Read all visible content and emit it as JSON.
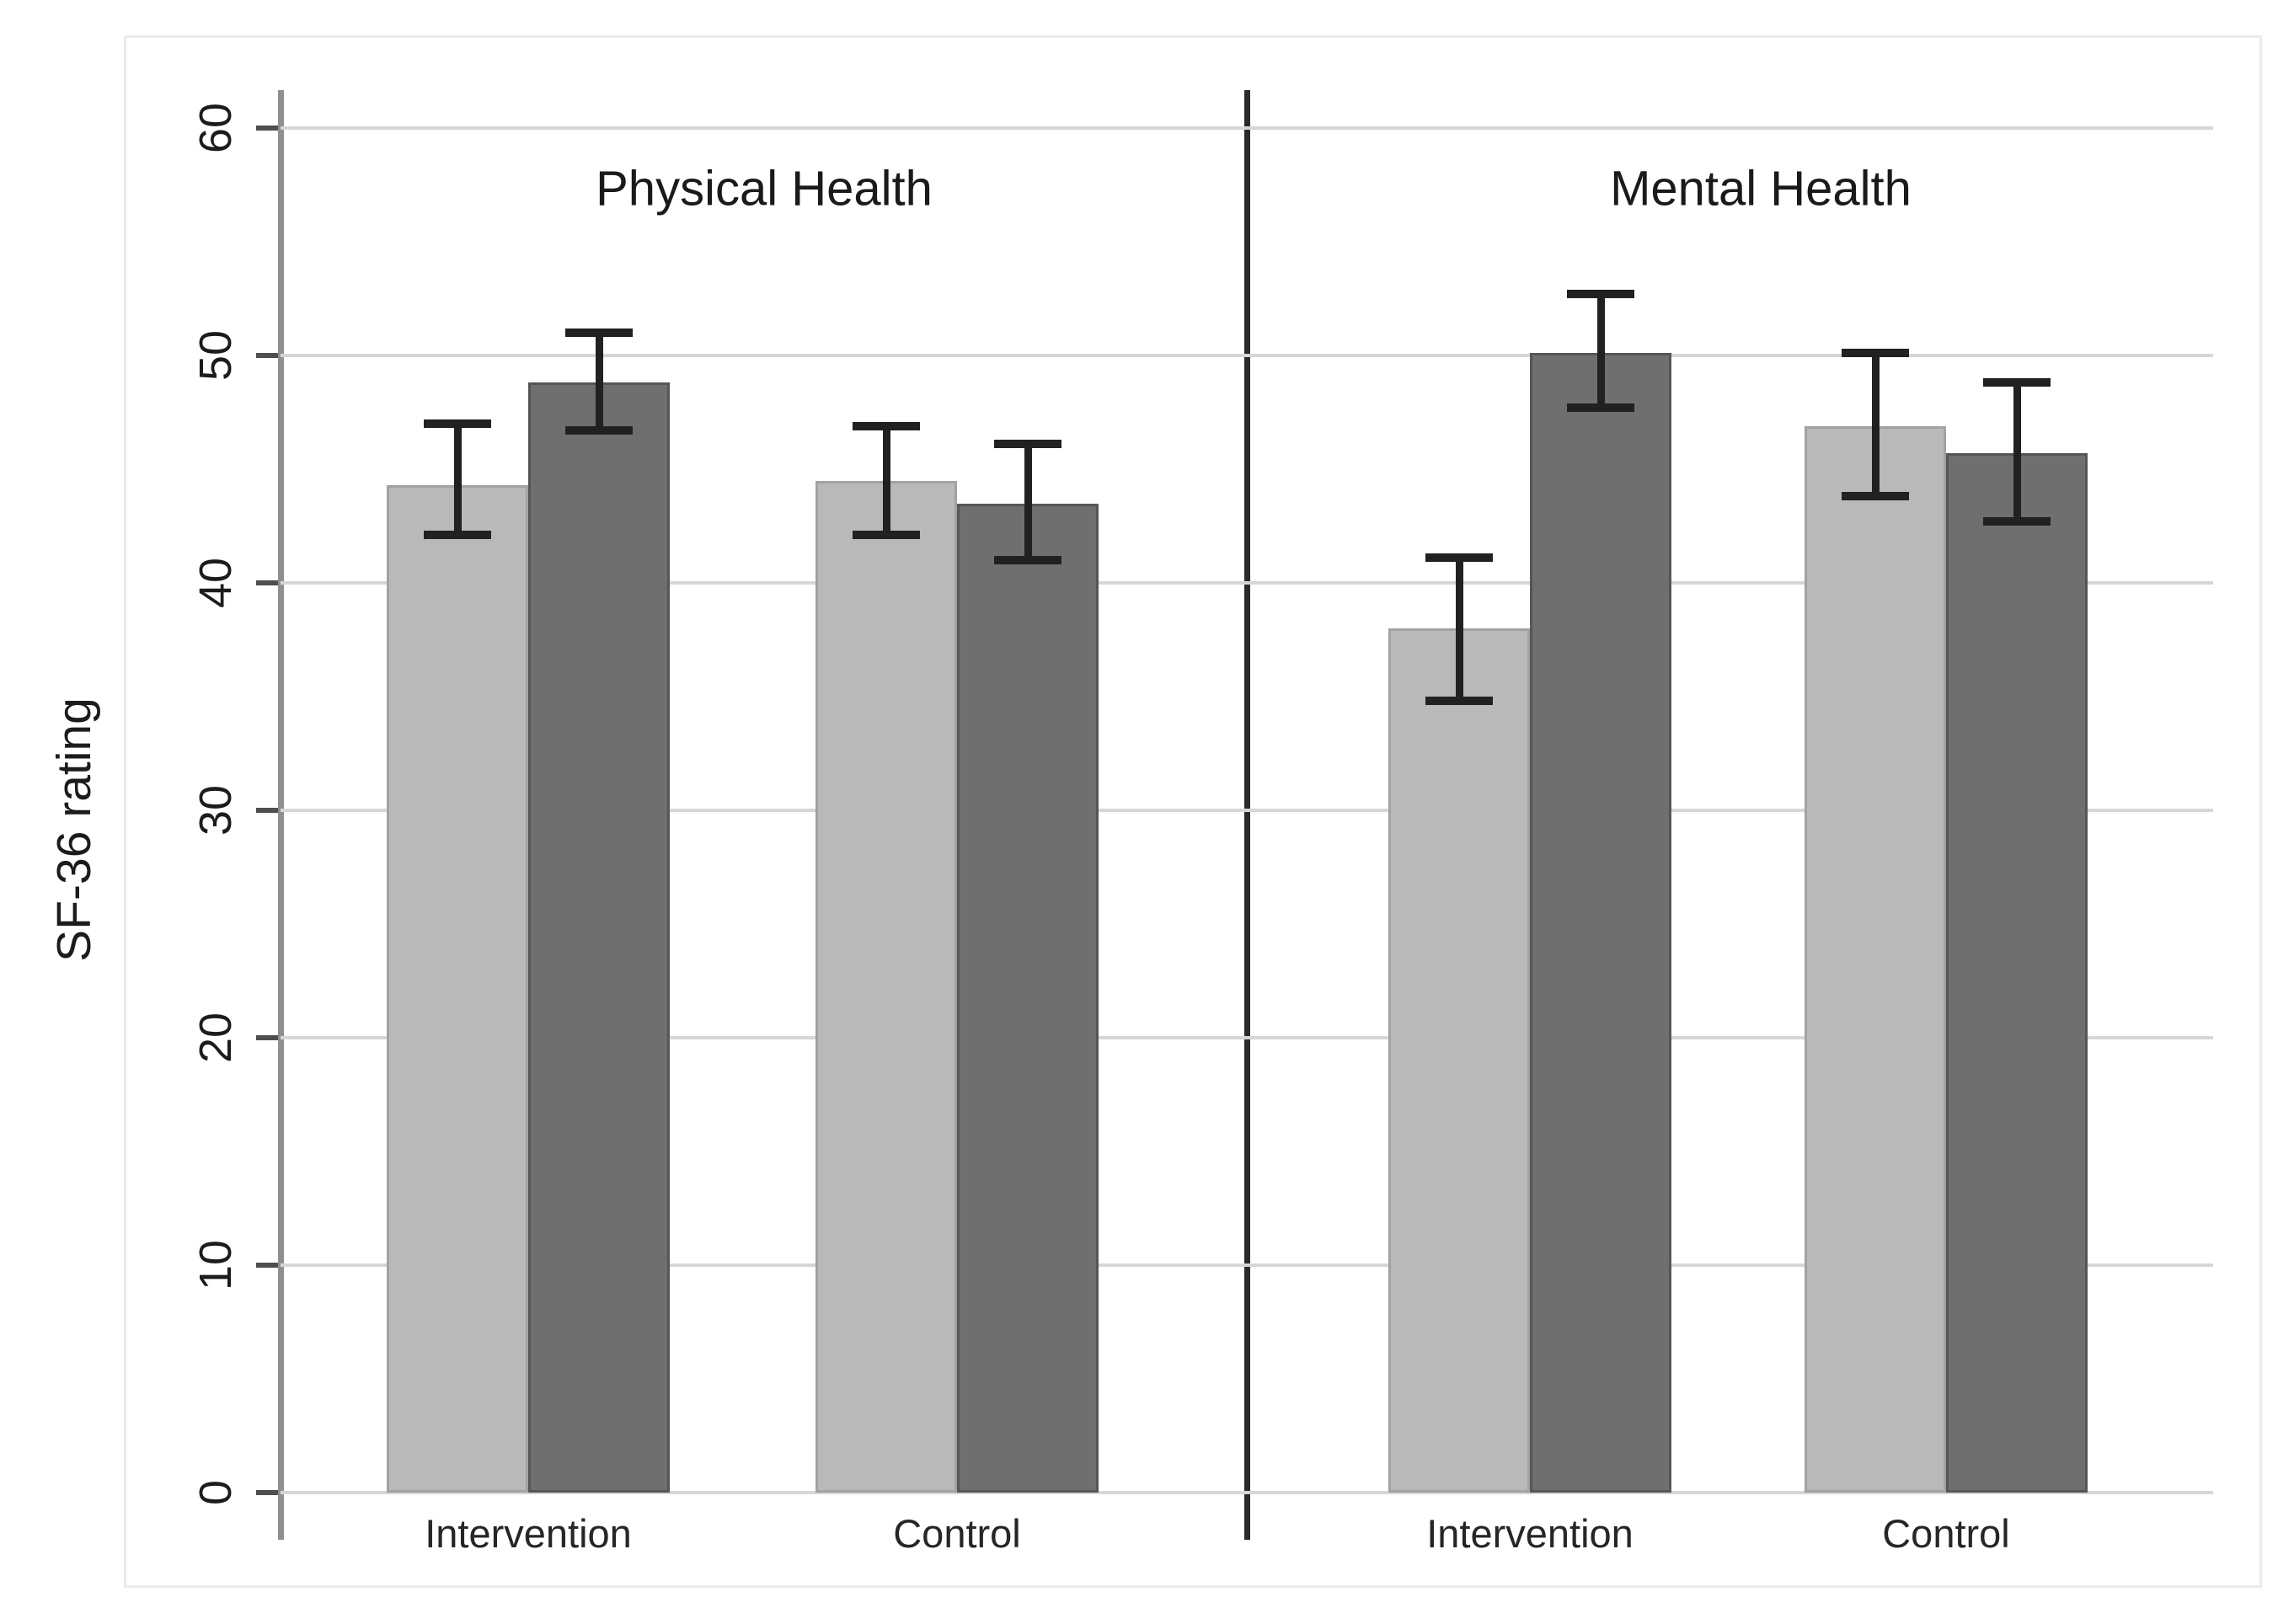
{
  "figure": {
    "ylabel": "SF-36 rating",
    "panel_titles": [
      "Physical Health",
      "Mental Health"
    ],
    "x_labels": [
      "Intervention",
      "Control"
    ]
  },
  "chart_data": {
    "type": "bar",
    "title": "",
    "xlabel": "",
    "ylabel": "SF-36 rating",
    "ylim": [
      0,
      61.6
    ],
    "yticks": [
      0,
      10,
      20,
      30,
      40,
      50,
      60
    ],
    "ytick_labels": [
      "0",
      "10",
      "20",
      "30",
      "40",
      "50",
      "60"
    ],
    "ytick_rotation_deg": 90,
    "grid": "horizontal",
    "legend": "none",
    "error_bars": "95% CI whiskers with caps",
    "panels": [
      {
        "title": "Physical Health",
        "categories": [
          "Intervention",
          "Control"
        ],
        "series": [
          {
            "name": "light gray bars",
            "values": [
              44.3,
              44.5
            ],
            "ci_low": [
              42.1,
              42.1
            ],
            "ci_high": [
              47.0,
              46.9
            ]
          },
          {
            "name": "dark gray bars",
            "values": [
              48.8,
              43.5
            ],
            "ci_low": [
              46.7,
              41.0
            ],
            "ci_high": [
              51.0,
              46.1
            ]
          }
        ]
      },
      {
        "title": "Mental Health",
        "categories": [
          "Intervention",
          "Control"
        ],
        "series": [
          {
            "name": "light gray bars",
            "values": [
              38.0,
              46.9
            ],
            "ci_low": [
              34.8,
              43.8
            ],
            "ci_high": [
              41.1,
              50.1
            ]
          },
          {
            "name": "dark gray bars",
            "values": [
              50.1,
              45.7
            ],
            "ci_low": [
              47.7,
              42.7
            ],
            "ci_high": [
              52.7,
              48.8
            ]
          }
        ]
      }
    ],
    "colors": {
      "light_bar": "#b9b9b9",
      "light_bar_border": "#a2a2a2",
      "dark_bar": "#6f6f6f",
      "dark_bar_border": "#565656",
      "error_bar": "#212121",
      "gridline": "#d6d6d6",
      "axis_line": "#8f8f8f",
      "tick": "#4f4f4f",
      "panel_separator": "#2a2a2a",
      "text": "#1c1c1c",
      "background": "#ffffff",
      "outer_border": "#ebebeb"
    }
  }
}
